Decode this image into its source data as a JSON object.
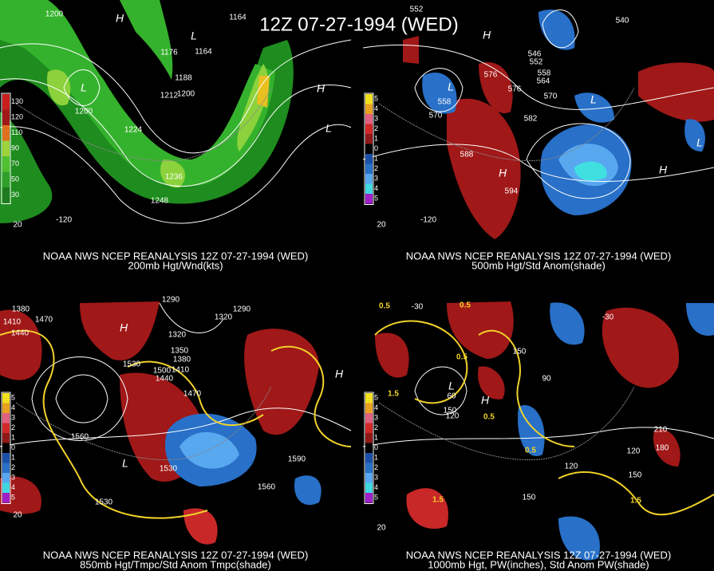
{
  "title": "12Z 07-27-1994 (WED)",
  "panels": [
    {
      "caption": [
        "NOAA NWS NCEP REANALYSIS 12Z 07-27-1994 (WED)",
        "200mb Hgt/Wnd(kts)"
      ],
      "colorbar": [
        "130",
        "120",
        "110",
        "90",
        "70",
        "50",
        "30"
      ],
      "labels": [
        "1200",
        "H",
        "1164",
        "L",
        "1176",
        "1164",
        "L",
        "1188",
        "1200",
        "1212",
        "1200",
        "1224",
        "H",
        "L",
        "1236",
        "1248",
        "20",
        "-120"
      ]
    },
    {
      "caption": [
        "NOAA NWS NCEP REANALYSIS 12Z 07-27-1994 (WED)",
        "500mb Hgt/Std Anom(shade)"
      ],
      "colorbar": [
        "5",
        "4",
        "3",
        "2",
        "1",
        "0",
        "1",
        "2",
        "3",
        "4",
        "5"
      ],
      "labels": [
        "552",
        "540",
        "H",
        "546",
        "552",
        "576",
        "L",
        "558",
        "570",
        "576",
        "558",
        "564",
        "570",
        "L",
        "582",
        "H",
        "588",
        "594",
        "L",
        "H",
        "20",
        "-120"
      ]
    },
    {
      "caption": [
        "NOAA NWS NCEP REANALYSIS 12Z 07-27-1994 (WED)",
        "850mb Hgt/Tmpc/Std Anom Tmpc(shade)"
      ],
      "colorbar": [
        "5",
        "4",
        "3",
        "2",
        "1",
        "0",
        "1",
        "2",
        "3",
        "4",
        "5"
      ],
      "labels": [
        "1380",
        "1410",
        "1440",
        "1470",
        "1290",
        "1320",
        "1290",
        "1320",
        "1350",
        "1380",
        "1410",
        "1440",
        "1530",
        "1500",
        "1470",
        "1560",
        "L",
        "1530",
        "H",
        "1590",
        "1560",
        "1530",
        "20",
        "H"
      ]
    },
    {
      "caption": [
        "NOAA NWS NCEP REANALYSIS 12Z 07-27-1994 (WED)",
        "1000mb Hgt, PW(inches), Std Anom PW(shade)"
      ],
      "colorbar": [
        "5",
        "4",
        "3",
        "2",
        "1",
        "0",
        "1",
        "2",
        "3",
        "4",
        "5"
      ],
      "labels": [
        "0.5",
        "-30",
        "0.5",
        "-30",
        "0.5",
        "90",
        "150",
        "L",
        "60",
        "120",
        "150",
        "H",
        "0.5",
        "1.5",
        "120",
        "150",
        "210",
        "180",
        "120",
        "150",
        "1.5",
        "1.5",
        "0.5",
        "20"
      ]
    }
  ]
}
